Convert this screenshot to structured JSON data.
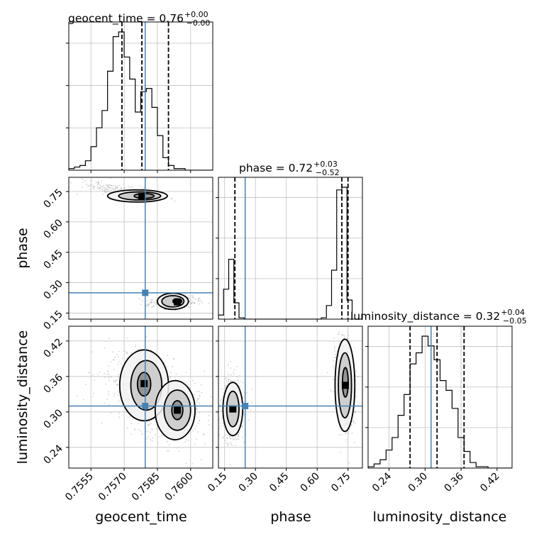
{
  "chart_data": {
    "type": "corner",
    "parameters": [
      "geocent_time",
      "phase",
      "luminosity_distance"
    ],
    "colors": {
      "truth": "#4682b4",
      "hist": "#000000",
      "grid": "#c0c0c0",
      "contour": "#000000",
      "points": "#9a9a9a"
    },
    "grid": true,
    "axes": {
      "geocent_time": {
        "range": [
          0.7545,
          0.761
        ],
        "ticks": [
          0.7555,
          0.757,
          0.7585,
          0.76
        ],
        "tick_labels": [
          "0.7555",
          "0.7570",
          "0.7585",
          "0.7600"
        ],
        "label": "geocent_time"
      },
      "phase": {
        "range": [
          0.12,
          0.82
        ],
        "ticks": [
          0.15,
          0.3,
          0.45,
          0.6,
          0.75
        ],
        "tick_labels": [
          "0.15",
          "0.30",
          "0.45",
          "0.60",
          "0.75"
        ],
        "label": "phase"
      },
      "luminosity_distance": {
        "range": [
          0.205,
          0.445
        ],
        "ticks": [
          0.24,
          0.3,
          0.36,
          0.42
        ],
        "tick_labels": [
          "0.24",
          "0.30",
          "0.36",
          "0.42"
        ],
        "label": "luminosity_distance"
      }
    },
    "titles": [
      {
        "param": "geocent_time",
        "text": "geocent_time = 0.76",
        "sup": "+0.00",
        "sub": "−0.00"
      },
      {
        "param": "phase",
        "text": "phase = 0.72",
        "sup": "+0.03",
        "sub": "−0.52"
      },
      {
        "param": "luminosity_distance",
        "text": "luminosity_distance = 0.32",
        "sup": "+0.04",
        "sub": "−0.05"
      }
    ],
    "truths": {
      "geocent_time": 0.75795,
      "phase": 0.25,
      "luminosity_distance": 0.31
    },
    "quantiles": {
      "geocent_time": [
        0.7569,
        0.7578,
        0.759
      ],
      "phase": [
        0.2,
        0.72,
        0.75
      ],
      "luminosity_distance": [
        0.275,
        0.32,
        0.365
      ]
    },
    "histograms": {
      "geocent_time": {
        "bin_start": 0.7545,
        "bin_width": 0.00025,
        "counts": [
          1,
          2,
          3,
          6,
          15,
          27,
          38,
          63,
          85,
          88,
          72,
          58,
          37,
          50,
          52,
          40,
          22,
          8,
          3,
          1,
          1,
          0,
          0,
          0,
          0,
          0
        ]
      },
      "phase": {
        "bin_start": 0.12,
        "bin_width": 0.025,
        "counts": [
          3,
          22,
          44,
          12,
          1,
          0,
          0,
          0,
          0,
          0,
          0,
          0,
          0,
          0,
          0,
          0,
          0,
          0,
          0,
          0,
          1,
          10,
          36,
          95,
          97,
          14,
          0,
          0
        ]
      },
      "luminosity_distance": {
        "bin_start": 0.205,
        "bin_width": 0.01,
        "counts": [
          1,
          3,
          6,
          13,
          22,
          38,
          53,
          75,
          83,
          95,
          88,
          78,
          63,
          56,
          43,
          22,
          12,
          4,
          1,
          1,
          0,
          0,
          0,
          0
        ]
      }
    },
    "clusters": [
      {
        "pair": [
          "geocent_time",
          "phase"
        ],
        "center": [
          0.7578,
          0.728
        ],
        "sd": [
          0.00052,
          0.009
        ],
        "rot": -0.05,
        "n": 260
      },
      {
        "pair": [
          "geocent_time",
          "phase"
        ],
        "center": [
          0.7564,
          0.765
        ],
        "sd": [
          0.0007,
          0.016
        ],
        "rot": -0.1,
        "n": 120
      },
      {
        "pair": [
          "geocent_time",
          "phase"
        ],
        "center": [
          0.7592,
          0.205
        ],
        "sd": [
          0.00065,
          0.013
        ],
        "rot": 0.05,
        "n": 260
      },
      {
        "pair": [
          "geocent_time",
          "luminosity_distance"
        ],
        "center": [
          0.7577,
          0.345
        ],
        "sd": [
          0.0008,
          0.035
        ],
        "rot": 0.75,
        "n": 320
      },
      {
        "pair": [
          "geocent_time",
          "luminosity_distance"
        ],
        "center": [
          0.7593,
          0.302
        ],
        "sd": [
          0.00075,
          0.03
        ],
        "rot": 0.75,
        "n": 320
      },
      {
        "pair": [
          "phase",
          "luminosity_distance"
        ],
        "center": [
          0.735,
          0.345
        ],
        "sd": [
          0.022,
          0.04
        ],
        "rot": 0.05,
        "n": 420
      },
      {
        "pair": [
          "phase",
          "luminosity_distance"
        ],
        "center": [
          0.19,
          0.305
        ],
        "sd": [
          0.03,
          0.03
        ],
        "rot": 0.0,
        "n": 360
      }
    ],
    "contours": [
      {
        "pair": [
          "geocent_time",
          "phase"
        ],
        "rings": [
          {
            "center": [
              0.7576,
              0.728
            ],
            "rx": 0.00135,
            "ry": 0.03,
            "rot": 0,
            "fill": "#f2f2f2"
          },
          {
            "center": [
              0.7577,
              0.728
            ],
            "rx": 0.00095,
            "ry": 0.02,
            "rot": 0,
            "fill": "#c8c8c8"
          },
          {
            "center": [
              0.7579,
              0.728
            ],
            "rx": 0.00045,
            "ry": 0.012,
            "rot": 0,
            "fill": "#8a8a8a"
          },
          {
            "center": [
              0.7592,
              0.208
            ],
            "rx": 0.0007,
            "ry": 0.04,
            "rot": 0,
            "fill": "#f2f2f2"
          },
          {
            "center": [
              0.7592,
              0.208
            ],
            "rx": 0.0005,
            "ry": 0.028,
            "rot": 0,
            "fill": "#c8c8c8"
          },
          {
            "center": [
              0.7594,
              0.208
            ],
            "rx": 0.0002,
            "ry": 0.012,
            "rot": 0,
            "fill": "#8a8a8a"
          }
        ]
      },
      {
        "pair": [
          "geocent_time",
          "luminosity_distance"
        ],
        "rings": [
          {
            "center": [
              0.7579,
              0.345
            ],
            "rx": 0.0011,
            "ry": 0.06,
            "rot": 0,
            "fill": "#f2f2f2"
          },
          {
            "center": [
              0.758,
              0.345
            ],
            "rx": 0.0007,
            "ry": 0.042,
            "rot": 0,
            "fill": "#c8c8c8"
          },
          {
            "center": [
              0.7579,
              0.347
            ],
            "rx": 0.0003,
            "ry": 0.02,
            "rot": 0,
            "fill": "#8a8a8a"
          },
          {
            "center": [
              0.7593,
              0.303
            ],
            "rx": 0.0009,
            "ry": 0.05,
            "rot": 0,
            "fill": "#f2f2f2"
          },
          {
            "center": [
              0.7594,
              0.303
            ],
            "rx": 0.0006,
            "ry": 0.034,
            "rot": 0,
            "fill": "#c8c8c8"
          },
          {
            "center": [
              0.7594,
              0.303
            ],
            "rx": 0.00025,
            "ry": 0.016,
            "rot": 0,
            "fill": "#8a8a8a"
          }
        ]
      },
      {
        "pair": [
          "phase",
          "luminosity_distance"
        ],
        "rings": [
          {
            "center": [
              0.735,
              0.345
            ],
            "rx": 0.048,
            "ry": 0.078,
            "rot": 0,
            "fill": "#f2f2f2"
          },
          {
            "center": [
              0.735,
              0.345
            ],
            "rx": 0.032,
            "ry": 0.055,
            "rot": 0,
            "fill": "#c8c8c8"
          },
          {
            "center": [
              0.737,
              0.35
            ],
            "rx": 0.014,
            "ry": 0.025,
            "rot": 0,
            "fill": "#8a8a8a"
          },
          {
            "center": [
              0.19,
              0.305
            ],
            "rx": 0.048,
            "ry": 0.045,
            "rot": 0,
            "fill": "#f2f2f2"
          },
          {
            "center": [
              0.19,
              0.305
            ],
            "rx": 0.03,
            "ry": 0.03,
            "rot": 0,
            "fill": "#c8c8c8"
          }
        ]
      }
    ],
    "markers": [
      {
        "pair": [
          "geocent_time",
          "phase"
        ],
        "x": 0.7578,
        "y": 0.725
      },
      {
        "pair": [
          "geocent_time",
          "phase"
        ],
        "x": 0.7594,
        "y": 0.205
      },
      {
        "pair": [
          "geocent_time",
          "luminosity_distance"
        ],
        "x": 0.7579,
        "y": 0.348
      },
      {
        "pair": [
          "geocent_time",
          "luminosity_distance"
        ],
        "x": 0.7594,
        "y": 0.303
      },
      {
        "pair": [
          "phase",
          "luminosity_distance"
        ],
        "x": 0.737,
        "y": 0.345
      },
      {
        "pair": [
          "phase",
          "luminosity_distance"
        ],
        "x": 0.19,
        "y": 0.305
      }
    ]
  }
}
